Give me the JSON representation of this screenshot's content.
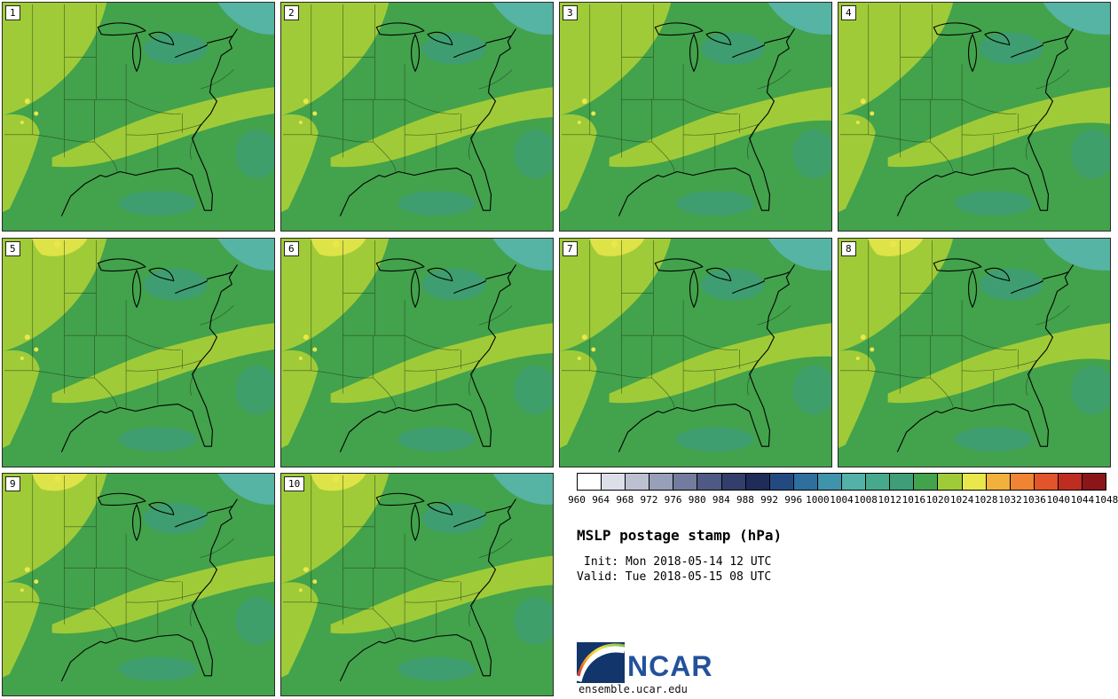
{
  "panels": [
    {
      "label": "1"
    },
    {
      "label": "2"
    },
    {
      "label": "3"
    },
    {
      "label": "4"
    },
    {
      "label": "5"
    },
    {
      "label": "6"
    },
    {
      "label": "7"
    },
    {
      "label": "8"
    },
    {
      "label": "9"
    },
    {
      "label": "10"
    }
  ],
  "colorbar": {
    "ticks": [
      "960",
      "964",
      "968",
      "972",
      "976",
      "980",
      "984",
      "988",
      "992",
      "996",
      "1000",
      "1004",
      "1008",
      "1012",
      "1016",
      "1020",
      "1024",
      "1028",
      "1032",
      "1036",
      "1040",
      "1044",
      "1048"
    ],
    "colors": [
      "#ffffff",
      "#dcdee8",
      "#bcc0d0",
      "#989fb8",
      "#727c9e",
      "#4f5a84",
      "#333f6b",
      "#1f2c57",
      "#234a80",
      "#2e6f9e",
      "#3f93ab",
      "#52b2a8",
      "#46a98e",
      "#3d9e78",
      "#43a24c",
      "#a0cb38",
      "#e9e74b",
      "#f2b03c",
      "#ee8434",
      "#e25429",
      "#bf2d22",
      "#8a161a"
    ]
  },
  "legend": {
    "title": "MSLP postage stamp (hPa)",
    "init": "Init: Mon 2018-05-14 12 UTC",
    "valid": "Valid: Tue 2018-05-15 08 UTC"
  },
  "footer": {
    "logo_text": "NCAR",
    "site": "ensemble.ucar.edu"
  },
  "map_colors": {
    "base_green": "#43a24c",
    "yellow_green": "#a0cb38",
    "sea_green": "#3d9e78",
    "teal": "#55b4a4",
    "yellow": "#e9e74b",
    "state_line": "#1c3a18",
    "coast": "#000000"
  },
  "chart_data": {
    "type": "heatmap",
    "title": "MSLP postage stamp (hPa)",
    "variable": "Mean sea level pressure",
    "units": "hPa",
    "init_time": "Mon 2018-05-14 12 UTC",
    "valid_time": "Tue 2018-05-15 08 UTC",
    "ensemble_members": [
      1,
      2,
      3,
      4,
      5,
      6,
      7,
      8,
      9,
      10
    ],
    "colorbar_min": 960,
    "colorbar_max": 1048,
    "colorbar_interval": 4,
    "ticks": [
      960,
      964,
      968,
      972,
      976,
      980,
      984,
      988,
      992,
      996,
      1000,
      1004,
      1008,
      1012,
      1016,
      1020,
      1024,
      1028,
      1032,
      1036,
      1040,
      1044,
      1048
    ],
    "colors": [
      "#ffffff",
      "#dcdee8",
      "#bcc0d0",
      "#989fb8",
      "#727c9e",
      "#4f5a84",
      "#333f6b",
      "#1f2c57",
      "#234a80",
      "#2e6f9e",
      "#3f93ab",
      "#52b2a8",
      "#46a98e",
      "#3d9e78",
      "#43a24c",
      "#a0cb38",
      "#e9e74b",
      "#f2b03c",
      "#ee8434",
      "#e25429",
      "#bf2d22",
      "#8a161a"
    ],
    "displayed_value_range": [
      1008,
      1028
    ],
    "region": "Central/Eastern United States",
    "source": "ensemble.ucar.edu"
  }
}
